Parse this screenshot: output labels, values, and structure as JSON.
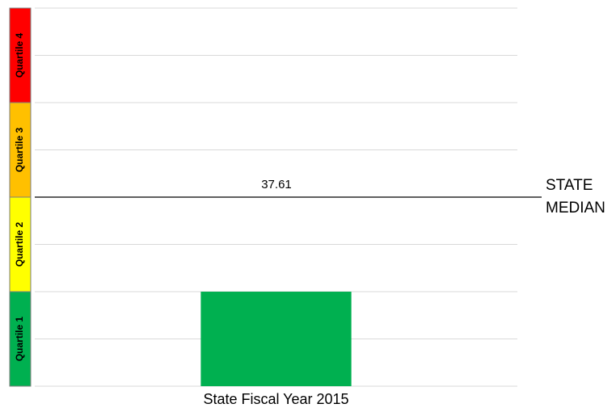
{
  "chart_data": {
    "type": "bar",
    "categories": [
      "State Fiscal Year 2015"
    ],
    "values": [
      18.8
    ],
    "color": "#00b050",
    "ylim": [
      0,
      75.22
    ],
    "median": {
      "value": 37.61,
      "value_label": "37.61",
      "label_lines": [
        "STATE",
        "MEDIAN"
      ]
    },
    "quartile_bands": [
      {
        "label": "Quartile 1",
        "color": "#00b050"
      },
      {
        "label": "Quartile 2",
        "color": "#ffff00"
      },
      {
        "label": "Quartile 3",
        "color": "#ffc000"
      },
      {
        "label": "Quartile 4",
        "color": "#ff0000"
      }
    ]
  }
}
